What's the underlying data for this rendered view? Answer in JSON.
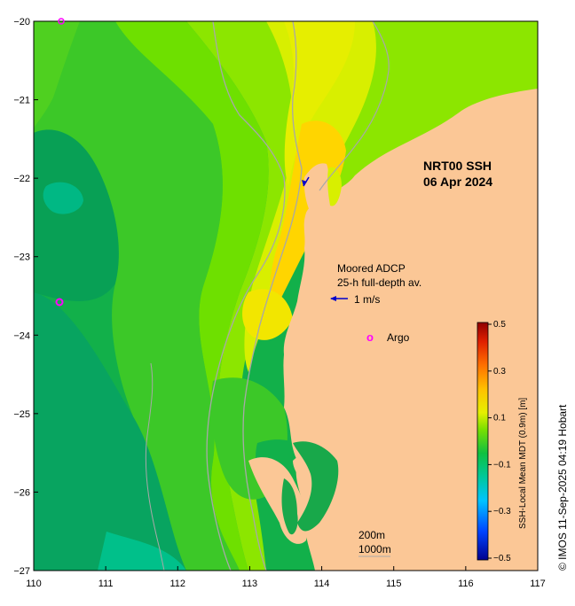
{
  "map": {
    "title_line1": "NRT00 SSH",
    "title_line2": "06 Apr 2024",
    "adcp_line1": "Moored ADCP",
    "adcp_line2": "25-h full-depth av.",
    "adcp_scale": "1 m/s",
    "argo_symbol": "o",
    "argo_label": "Argo",
    "contour_200": "200m",
    "contour_1000": "1000m",
    "credit": "© IMOS 11-Sep-2025 04:19 Hobart",
    "colorbar_title": "SSH-Local Mean MDT (0.9m) [m]",
    "lon_ticks": [
      "110",
      "111",
      "112",
      "113",
      "114",
      "115",
      "116",
      "117"
    ],
    "lat_ticks": [
      "−20",
      "−21",
      "−22",
      "−23",
      "−24",
      "−25",
      "−26",
      "−27"
    ],
    "colorbar_ticks": [
      "0.5",
      "0.3",
      "0.1",
      "−0.1",
      "−0.3",
      "−0.5"
    ],
    "colors": {
      "land": "#fbc796",
      "argo": "#ff00ff",
      "arrow": "#0000cc",
      "isobath": "#a8a8a8"
    }
  }
}
